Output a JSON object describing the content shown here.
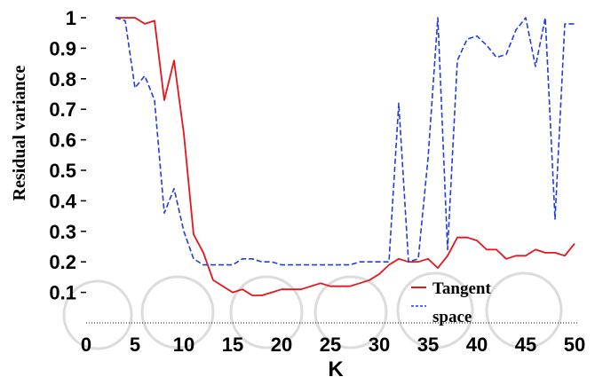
{
  "chart_data": {
    "type": "line",
    "xlabel": "K",
    "ylabel": "Residual variance",
    "xlim": [
      0,
      50
    ],
    "ylim": [
      0,
      1
    ],
    "x_ticks": [
      "0",
      "5",
      "10",
      "15",
      "20",
      "25",
      "30",
      "35",
      "40",
      "45",
      "50"
    ],
    "y_ticks": [
      "0.1",
      "0.2",
      "0.3",
      "0.4",
      "0.5",
      "0.6",
      "0.7",
      "0.8",
      "0.9",
      "1"
    ],
    "legend_position": "bottom-right",
    "series": [
      {
        "name": "Tangent",
        "color": "#e8141c",
        "style": "solid",
        "x": [
          3,
          4,
          5,
          6,
          7,
          8,
          9,
          10,
          11,
          12,
          13,
          14,
          15,
          16,
          17,
          18,
          19,
          20,
          21,
          22,
          23,
          24,
          25,
          26,
          27,
          28,
          29,
          30,
          31,
          32,
          33,
          34,
          35,
          36,
          37,
          38,
          39,
          40,
          41,
          42,
          43,
          44,
          45,
          46,
          47,
          48,
          49,
          50
        ],
        "y": [
          1.0,
          1.0,
          1.0,
          0.98,
          0.99,
          0.73,
          0.86,
          0.62,
          0.29,
          0.23,
          0.14,
          0.12,
          0.1,
          0.11,
          0.09,
          0.09,
          0.1,
          0.11,
          0.11,
          0.11,
          0.12,
          0.13,
          0.12,
          0.12,
          0.12,
          0.13,
          0.14,
          0.16,
          0.19,
          0.21,
          0.2,
          0.2,
          0.21,
          0.18,
          0.22,
          0.28,
          0.28,
          0.27,
          0.24,
          0.24,
          0.21,
          0.22,
          0.22,
          0.24,
          0.23,
          0.23,
          0.22,
          0.26
        ]
      },
      {
        "name": "space",
        "color": "#1f3de0",
        "style": "dashed",
        "x": [
          3,
          4,
          5,
          6,
          7,
          8,
          9,
          10,
          11,
          12,
          13,
          14,
          15,
          16,
          17,
          18,
          19,
          20,
          21,
          22,
          23,
          24,
          25,
          26,
          27,
          28,
          29,
          30,
          31,
          32,
          33,
          34,
          35,
          36,
          37,
          38,
          39,
          40,
          41,
          42,
          43,
          44,
          45,
          46,
          47,
          48,
          49,
          50
        ],
        "y": [
          1.0,
          0.99,
          0.77,
          0.81,
          0.73,
          0.36,
          0.44,
          0.3,
          0.21,
          0.19,
          0.19,
          0.19,
          0.19,
          0.21,
          0.21,
          0.2,
          0.2,
          0.19,
          0.19,
          0.19,
          0.19,
          0.19,
          0.19,
          0.19,
          0.19,
          0.2,
          0.2,
          0.2,
          0.2,
          0.72,
          0.2,
          0.21,
          0.54,
          1.0,
          0.24,
          0.86,
          0.93,
          0.94,
          0.91,
          0.87,
          0.88,
          0.96,
          1.0,
          0.84,
          1.0,
          0.34,
          0.98,
          0.98
        ]
      }
    ]
  }
}
